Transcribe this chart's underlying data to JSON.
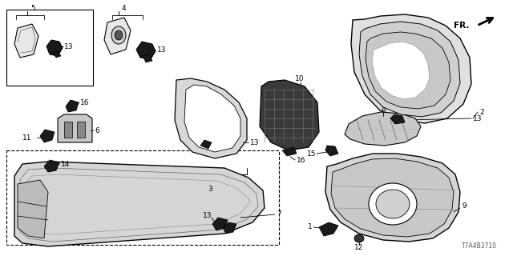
{
  "diagram_id": "T7A4B3710",
  "bg_color": "#ffffff",
  "fig_width": 6.4,
  "fig_height": 3.2,
  "dpi": 100,
  "font_size": 6.5,
  "lw": 0.8
}
